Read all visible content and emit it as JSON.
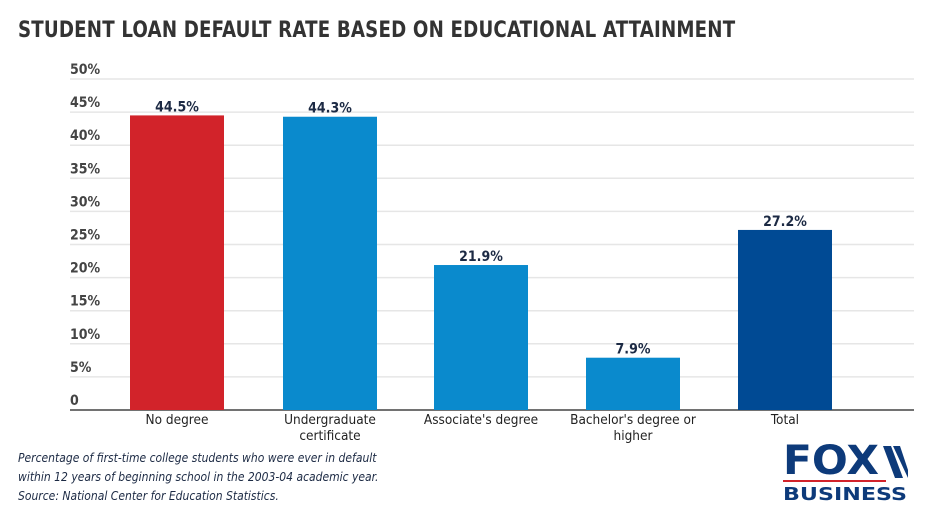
{
  "chart_data": {
    "type": "bar",
    "title": "STUDENT LOAN DEFAULT RATE BASED ON EDUCATIONAL ATTAINMENT",
    "categories": [
      [
        "No degree"
      ],
      [
        "Undergraduate",
        "certificate"
      ],
      [
        "Associate's degree"
      ],
      [
        "Bachelor's degree or",
        "higher"
      ],
      [
        "Total"
      ]
    ],
    "values": [
      44.5,
      44.3,
      21.9,
      7.9,
      27.2
    ],
    "data_labels": [
      "44.5%",
      "44.3%",
      "21.9%",
      "7.9%",
      "27.2%"
    ],
    "colors": [
      "#d2232a",
      "#0a8acd",
      "#0a8acd",
      "#0a8acd",
      "#004a94"
    ],
    "ylim": [
      0,
      50
    ],
    "yticks": [
      0,
      5,
      10,
      15,
      20,
      25,
      30,
      35,
      40,
      45,
      50
    ],
    "ytick_labels": [
      "0",
      "5%",
      "10%",
      "15%",
      "20%",
      "25%",
      "30%",
      "35%",
      "40%",
      "45%",
      "50%"
    ],
    "grid": true,
    "xlabel": "",
    "ylabel": ""
  },
  "notes": [
    "Percentage of first-time college students who were ever in default",
    "within 12 years of beginning school in the 2003-04 academic year.",
    "Source: National Center for Education Statistics."
  ],
  "logo": {
    "line1": "FOX",
    "line2": "BUSINESS",
    "colors": {
      "navy": "#0d3a7a",
      "red": "#d2232a"
    }
  }
}
